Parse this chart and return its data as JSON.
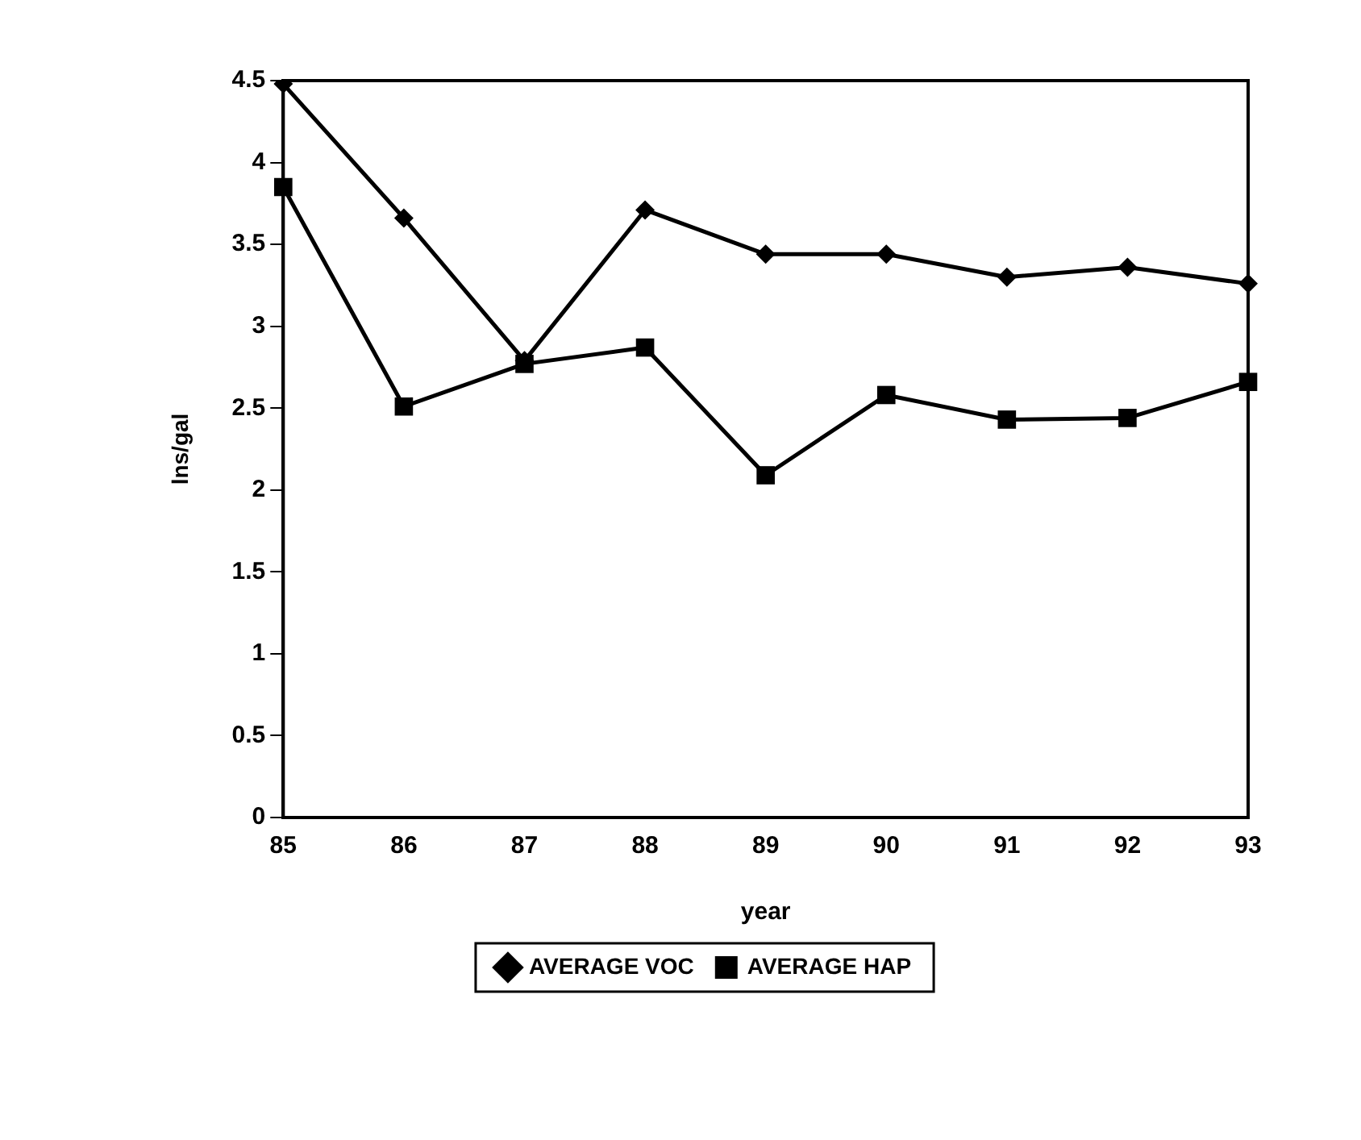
{
  "chart_data": {
    "type": "line",
    "xlabel": "year",
    "ylabel": "lns/gal",
    "categories": [
      "85",
      "86",
      "87",
      "88",
      "89",
      "90",
      "91",
      "92",
      "93"
    ],
    "series": [
      {
        "name": "AVERAGE VOC",
        "color": "#000000",
        "marker": "diamond",
        "values": [
          4.48,
          3.66,
          2.79,
          3.71,
          3.44,
          3.44,
          3.3,
          3.36,
          3.26
        ]
      },
      {
        "name": "AVERAGE HAP",
        "color": "#000000",
        "marker": "square",
        "values": [
          3.85,
          2.51,
          2.77,
          2.87,
          2.09,
          2.58,
          2.43,
          2.44,
          2.66
        ]
      }
    ],
    "ylim": [
      0,
      4.5
    ],
    "yticks": [
      0,
      0.5,
      1,
      1.5,
      2,
      2.5,
      3,
      3.5,
      4,
      4.5
    ],
    "grid": false,
    "legend": "bottom",
    "line_style": "solid"
  }
}
